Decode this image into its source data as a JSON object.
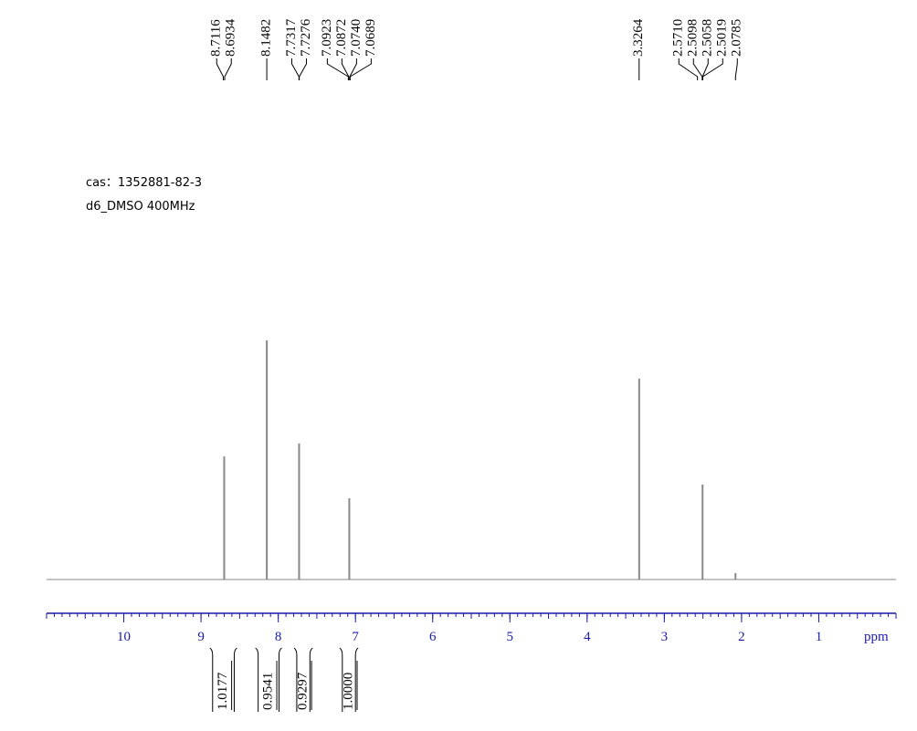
{
  "chart_data": {
    "type": "nmr",
    "annotations": [
      "cas：1352881-82-3",
      "d6_DMSO 400MHz"
    ],
    "x_label": "ppm",
    "xlim": [
      11,
      0
    ],
    "xticks": [
      10,
      9,
      8,
      7,
      6,
      5,
      4,
      3,
      2,
      1
    ],
    "color": "#888888",
    "x": [
      8.7,
      8.148,
      7.73,
      7.08,
      3.326,
      2.505,
      2.0785
    ],
    "values": [
      51.5,
      100,
      56.9,
      34,
      84,
      39.7,
      2.7
    ],
    "peak_labels": [
      {
        "value": 8.7116,
        "label": "8.7116"
      },
      {
        "value": 8.6934,
        "label": "8.6934"
      },
      {
        "value": 8.1482,
        "label": "8.1482"
      },
      {
        "value": 7.7317,
        "label": "7.7317"
      },
      {
        "value": 7.7276,
        "label": "7.7276"
      },
      {
        "value": 7.0923,
        "label": "7.0923"
      },
      {
        "value": 7.0872,
        "label": "7.0872"
      },
      {
        "value": 7.074,
        "label": "7.0740"
      },
      {
        "value": 7.0689,
        "label": "7.0689"
      },
      {
        "value": 3.3264,
        "label": "3.3264"
      },
      {
        "value": 2.571,
        "label": "2.5710"
      },
      {
        "value": 2.5098,
        "label": "2.5098"
      },
      {
        "value": 2.5058,
        "label": "2.5058"
      },
      {
        "value": 2.5019,
        "label": "2.5019"
      },
      {
        "value": 2.0785,
        "label": "2.0785"
      }
    ],
    "integrals": [
      {
        "range": [
          8.85,
          8.57
        ],
        "value": 1.0177
      },
      {
        "range": [
          8.26,
          7.99
        ],
        "value": 0.9541
      },
      {
        "range": [
          7.76,
          7.59
        ],
        "value": 0.9297
      },
      {
        "range": [
          7.17,
          7.0
        ],
        "value": {
          "value": 1.0,
          "label": "1.0000"
        }
      }
    ]
  }
}
